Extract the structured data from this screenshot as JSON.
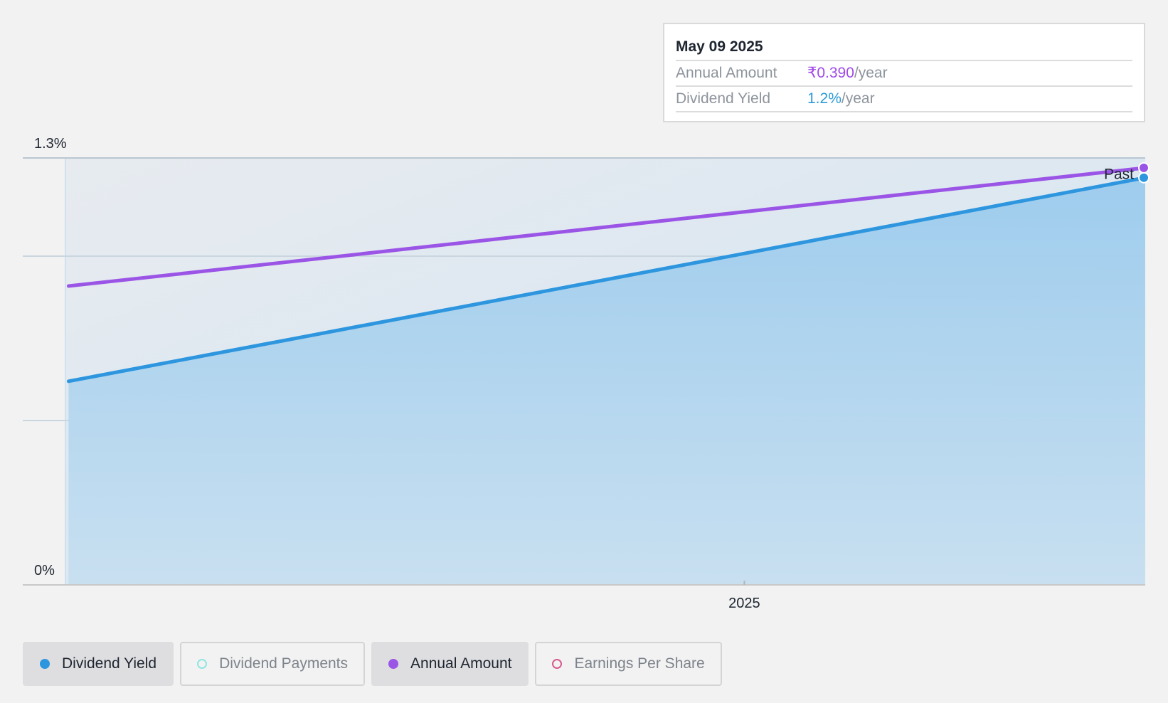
{
  "colors": {
    "dividend_yield": "#2d96df",
    "annual_amount": "#9b55e6",
    "dividend_payments": "#8fe6e0",
    "earnings_per_share": "#d65a8e",
    "area_fill": "#a6d0ee"
  },
  "tooltip": {
    "date": "May 09 2025",
    "rows": [
      {
        "label": "Annual Amount",
        "value": "₹0.390",
        "unit": "/year"
      },
      {
        "label": "Dividend Yield",
        "value": "1.2%",
        "unit": "/year"
      }
    ]
  },
  "legend": [
    {
      "label": "Dividend Yield",
      "active": true,
      "color": "#2d96df",
      "icon": "filled-dot-icon"
    },
    {
      "label": "Dividend Payments",
      "active": false,
      "color": "#8fe6e0",
      "icon": "hollow-dot-icon"
    },
    {
      "label": "Annual Amount",
      "active": true,
      "color": "#9b55e6",
      "icon": "filled-dot-icon"
    },
    {
      "label": "Earnings Per Share",
      "active": false,
      "color": "#d65a8e",
      "icon": "hollow-dot-icon"
    }
  ],
  "chart_data": {
    "type": "line",
    "title": "",
    "xlabel": "",
    "ylabel": "",
    "x_ticks": [
      {
        "label": "2025",
        "value": 2025.0
      }
    ],
    "xlim": [
      2024.37,
      2025.35
    ],
    "y_ticks": [
      {
        "label": "0%",
        "value": 0.0
      },
      {
        "label": "1.3%",
        "value": 1.3
      }
    ],
    "ylim": [
      0.0,
      1.3
    ],
    "past_label": "Past",
    "series": [
      {
        "name": "Dividend Yield",
        "x": [
          2024.41,
          2025.35
        ],
        "values": [
          0.62,
          1.24
        ],
        "area": true
      },
      {
        "name": "Annual Amount",
        "x": [
          2024.41,
          2025.35
        ],
        "values": [
          0.91,
          1.27
        ],
        "area": false
      }
    ]
  }
}
